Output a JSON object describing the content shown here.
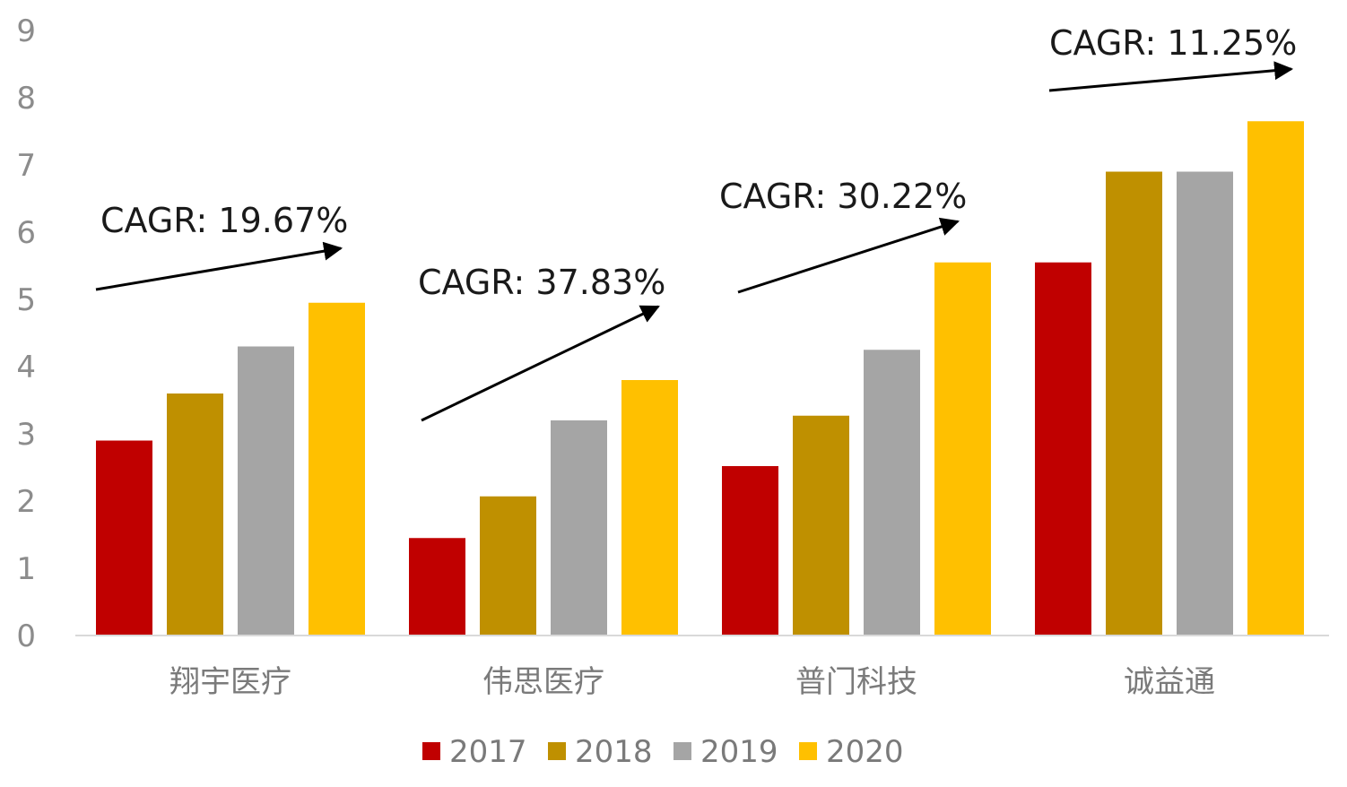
{
  "chart_data": {
    "type": "bar",
    "title": "",
    "xlabel": "",
    "ylabel": "",
    "ylim": [
      0,
      9
    ],
    "yticks": [
      0,
      1,
      2,
      3,
      4,
      5,
      6,
      7,
      8,
      9
    ],
    "grid": false,
    "legend_position": "bottom",
    "categories": [
      "翔宇医疗",
      "伟思医疗",
      "普门科技",
      "诚益通"
    ],
    "series": [
      {
        "name": "2017",
        "color": "#C00000",
        "values": [
          2.9,
          1.45,
          2.52,
          5.55
        ]
      },
      {
        "name": "2018",
        "color": "#BF9000",
        "values": [
          3.6,
          2.07,
          3.27,
          6.9
        ]
      },
      {
        "name": "2019",
        "color": "#A5A5A5",
        "values": [
          4.3,
          3.2,
          4.25,
          6.9
        ]
      },
      {
        "name": "2020",
        "color": "#FFC000",
        "values": [
          4.95,
          3.8,
          5.55,
          7.65
        ]
      }
    ],
    "annotations": [
      {
        "text": "CAGR: 19.67%",
        "category": "翔宇医疗"
      },
      {
        "text": "CAGR: 37.83%",
        "category": "伟思医疗"
      },
      {
        "text": "CAGR: 30.22%",
        "category": "普门科技"
      },
      {
        "text": "CAGR: 11.25%",
        "category": "诚益通"
      }
    ]
  }
}
